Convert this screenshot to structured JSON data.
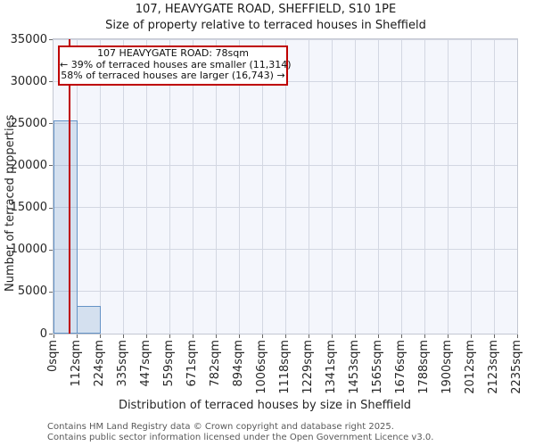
{
  "title": "107, HEAVYGATE ROAD, SHEFFIELD, S10 1PE",
  "subtitle": "Size of property relative to terraced houses in Sheffield",
  "annotation": {
    "line1": "107 HEAVYGATE ROAD: 78sqm",
    "line2": "← 39% of terraced houses are smaller (11,314)",
    "line3": "58% of terraced houses are larger (16,743) →"
  },
  "chart_data": {
    "type": "bar",
    "title": "107, HEAVYGATE ROAD, SHEFFIELD, S10 1PE",
    "subtitle": "Size of property relative to terraced houses in Sheffield",
    "xlabel": "Distribution of terraced houses by size in Sheffield",
    "ylabel": "Number of terraced properties",
    "categories": [
      "0sqm",
      "112sqm",
      "224sqm",
      "335sqm",
      "447sqm",
      "559sqm",
      "671sqm",
      "782sqm",
      "894sqm",
      "1006sqm",
      "1118sqm",
      "1229sqm",
      "1341sqm",
      "1453sqm",
      "1565sqm",
      "1676sqm",
      "1788sqm",
      "1900sqm",
      "2012sqm",
      "2123sqm",
      "2235sqm"
    ],
    "values": [
      25300,
      3300,
      0,
      0,
      0,
      0,
      0,
      0,
      0,
      0,
      0,
      0,
      0,
      0,
      0,
      0,
      0,
      0,
      0,
      0
    ],
    "y_ticks": [
      0,
      5000,
      10000,
      15000,
      20000,
      25000,
      30000,
      35000
    ],
    "ylim": [
      0,
      35000
    ],
    "xlim_sqm": [
      0,
      2235
    ],
    "grid": true,
    "legend": "none",
    "marker": {
      "value_sqm": 78,
      "label": "107 HEAVYGATE ROAD: 78sqm"
    }
  },
  "colors": {
    "marker_red": "#bf0000",
    "bar_border": "#6593c6",
    "bar_fill": "rgba(101,147,198,0.22)",
    "plot_bg": "#f4f6fc",
    "grid": "#d3d7e2",
    "spine": "#c4c8d2",
    "footer_text": "#595959"
  },
  "footer": {
    "line1": "Contains HM Land Registry data © Crown copyright and database right 2025.",
    "line2": "Contains public sector information licensed under the Open Government Licence v3.0."
  }
}
